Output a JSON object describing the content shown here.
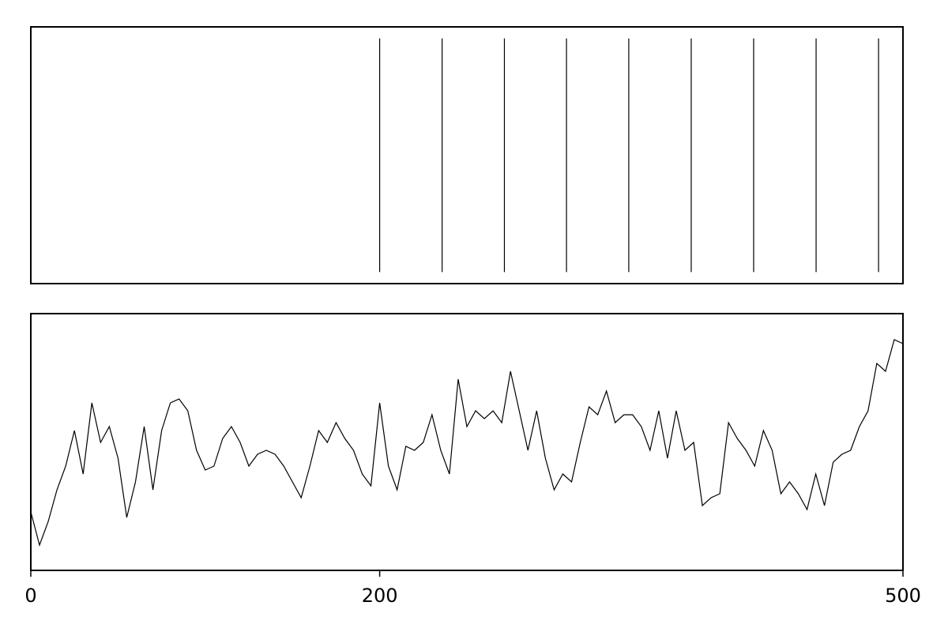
{
  "chart_data": [
    {
      "type": "event",
      "color": "#000000",
      "xlim": [
        0,
        500
      ],
      "positions": [
        200,
        235.8,
        271.5,
        307.1,
        342.8,
        378.6,
        414.4,
        450.2,
        486.0
      ]
    },
    {
      "type": "line",
      "color": "#000000",
      "xlim": [
        0,
        500
      ],
      "ylim": [
        0,
        325
      ],
      "xticks": [
        0,
        200,
        500
      ],
      "x": [
        0,
        5,
        10,
        15,
        20,
        25,
        30,
        35,
        40,
        45,
        50,
        55,
        60,
        65,
        70,
        75,
        80,
        85,
        90,
        95,
        100,
        105,
        110,
        115,
        120,
        125,
        130,
        135,
        140,
        145,
        150,
        155,
        160,
        165,
        170,
        175,
        180,
        185,
        190,
        195,
        200,
        205,
        210,
        215,
        220,
        225,
        230,
        235,
        240,
        245,
        250,
        255,
        260,
        265,
        270,
        275,
        280,
        285,
        290,
        295,
        300,
        305,
        310,
        315,
        320,
        325,
        330,
        335,
        340,
        345,
        350,
        355,
        360,
        365,
        370,
        375,
        380,
        385,
        390,
        395,
        400,
        405,
        410,
        415,
        420,
        425,
        430,
        435,
        440,
        445,
        450,
        455,
        460,
        465,
        470,
        475,
        480,
        485,
        490,
        495,
        500
      ],
      "values": [
        74,
        32,
        62,
        102,
        132,
        177,
        122,
        212,
        162,
        182,
        142,
        67,
        112,
        182,
        102,
        177,
        212,
        217,
        202,
        152,
        127,
        132,
        167,
        182,
        162,
        132,
        147,
        152,
        147,
        132,
        112,
        92,
        132,
        177,
        162,
        187,
        167,
        152,
        122,
        107,
        212,
        132,
        102,
        157,
        152,
        162,
        197,
        152,
        122,
        242,
        182,
        202,
        192,
        202,
        187,
        252,
        202,
        152,
        202,
        142,
        102,
        122,
        112,
        162,
        207,
        197,
        227,
        187,
        197,
        197,
        182,
        152,
        202,
        142,
        202,
        152,
        162,
        82,
        92,
        97,
        187,
        167,
        152,
        132,
        177,
        152,
        97,
        112,
        97,
        77,
        122,
        82,
        137,
        147,
        152,
        182,
        202,
        262,
        252,
        292,
        287
      ]
    }
  ]
}
